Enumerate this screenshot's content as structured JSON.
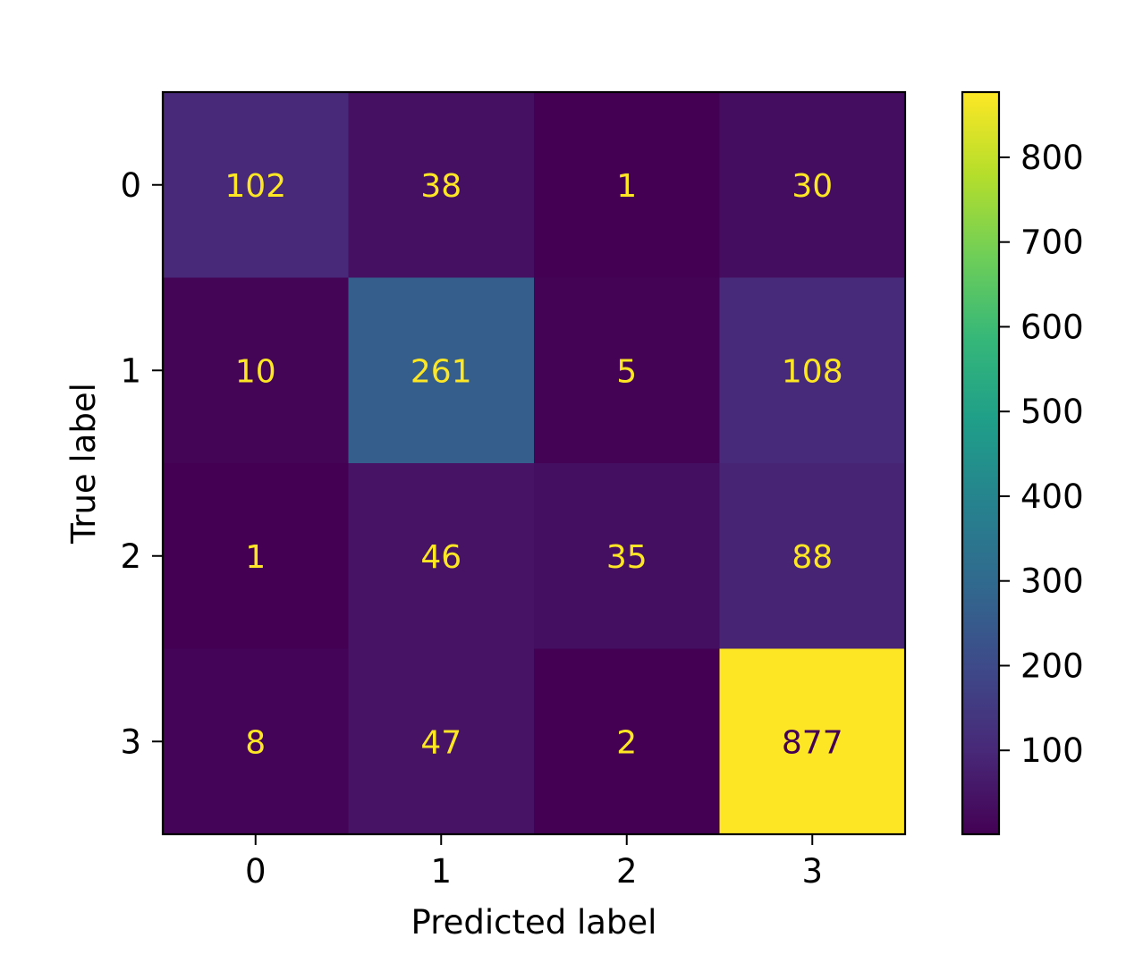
{
  "chart_data": {
    "type": "heatmap",
    "title": "",
    "xlabel": "Predicted label",
    "ylabel": "True label",
    "x_categories": [
      "0",
      "1",
      "2",
      "3"
    ],
    "y_categories": [
      "0",
      "1",
      "2",
      "3"
    ],
    "matrix": [
      [
        102,
        38,
        1,
        30
      ],
      [
        10,
        261,
        5,
        108
      ],
      [
        1,
        46,
        35,
        88
      ],
      [
        8,
        47,
        2,
        877
      ]
    ],
    "colormap": "viridis",
    "color_range": [
      1,
      877
    ],
    "colorbar_ticks": [
      100,
      200,
      300,
      400,
      500,
      600,
      700,
      800
    ],
    "text_color_light": "#fde725",
    "text_color_dark": "#440154",
    "grid": false
  }
}
